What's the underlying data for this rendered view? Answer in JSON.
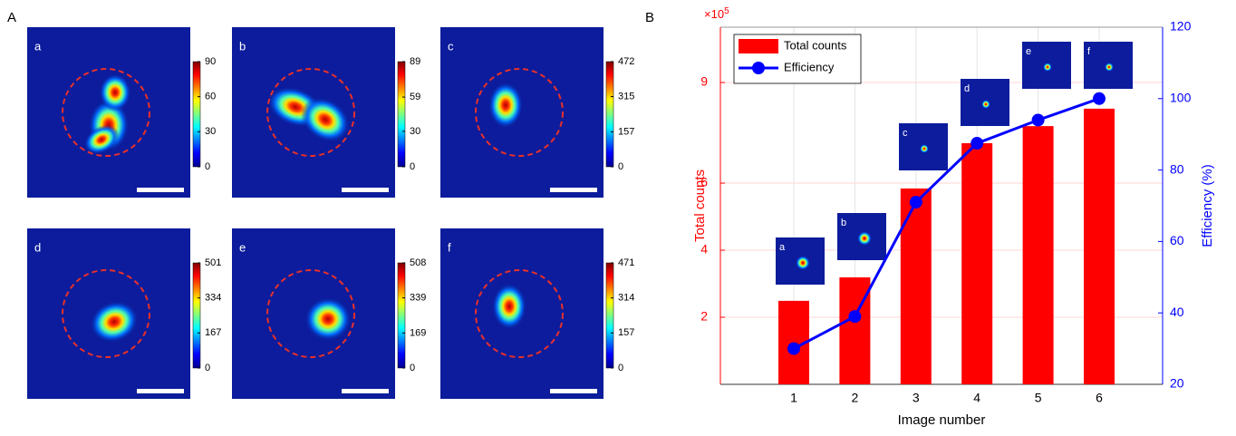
{
  "chart_data": [
    {
      "type": "heatmap-grid",
      "label": "A",
      "images": [
        {
          "label": "a",
          "colorbar_ticks": [
            0,
            30,
            60,
            90
          ]
        },
        {
          "label": "b",
          "colorbar_ticks": [
            0,
            30,
            59,
            89
          ]
        },
        {
          "label": "c",
          "colorbar_ticks": [
            0,
            157,
            315,
            472
          ]
        },
        {
          "label": "d",
          "colorbar_ticks": [
            0,
            167,
            334,
            501
          ]
        },
        {
          "label": "e",
          "colorbar_ticks": [
            0,
            169,
            339,
            508
          ]
        },
        {
          "label": "f",
          "colorbar_ticks": [
            0,
            157,
            314,
            471
          ]
        }
      ]
    },
    {
      "type": "bar-line",
      "label": "B",
      "xlabel": "Image number",
      "ylabel": "Total counts",
      "y2label": "Efficiency (%)",
      "y_multiplier": {
        "base": "×10",
        "exponent": "5"
      },
      "categories": [
        "1",
        "2",
        "3",
        "4",
        "5",
        "6"
      ],
      "series": [
        {
          "name": "Total counts",
          "type": "bar",
          "color": "#ff0000",
          "values": [
            2.49,
            3.19,
            5.84,
            7.19,
            7.7,
            8.22
          ]
        },
        {
          "name": "Efficiency",
          "type": "line",
          "color": "#0000ff",
          "axis": "y2",
          "values": [
            30,
            39,
            71,
            87.5,
            94,
            100
          ]
        }
      ],
      "ylim": [
        0,
        10.65
      ],
      "yticks": [
        2,
        4,
        6,
        9
      ],
      "y2lim": [
        20,
        120
      ],
      "y2ticks": [
        20,
        40,
        60,
        80,
        100,
        120
      ],
      "grid": true,
      "legend": "upper left"
    }
  ]
}
